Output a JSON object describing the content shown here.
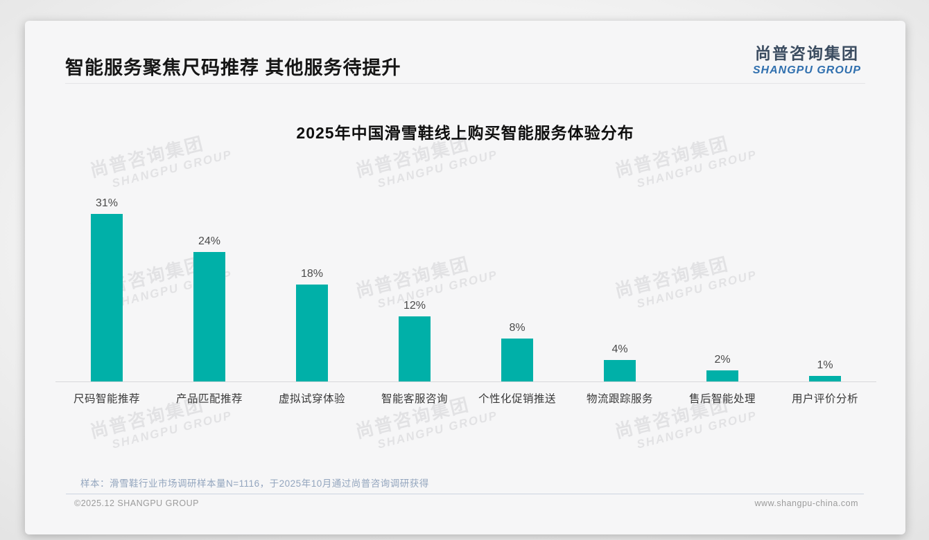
{
  "page": {
    "title": "智能服务聚焦尺码推荐 其他服务待提升",
    "logo": {
      "cn": "尚普咨询集团",
      "en": "SHANGPU GROUP"
    },
    "watermark": {
      "line1": "尚普咨询集团",
      "line2": "SHANGPU GROUP"
    },
    "note": "样本：滑雪鞋行业市场调研样本量N=1116，于2025年10月通过尚普咨询调研获得",
    "footer": {
      "left": "©2025.12 SHANGPU GROUP",
      "right": "www.shangpu-china.com"
    }
  },
  "chart_data": {
    "type": "bar",
    "title": "2025年中国滑雪鞋线上购买智能服务体验分布",
    "categories": [
      "尺码智能推荐",
      "产品匹配推荐",
      "虚拟试穿体验",
      "智能客服咨询",
      "个性化促销推送",
      "物流跟踪服务",
      "售后智能处理",
      "用户评价分析"
    ],
    "values": [
      31,
      24,
      18,
      12,
      8,
      4,
      2,
      1
    ],
    "unit": "%",
    "value_labels": [
      "31%",
      "24%",
      "18%",
      "12%",
      "8%",
      "4%",
      "2%",
      "1%"
    ],
    "bar_color": "#00b0a8",
    "xlabel": "",
    "ylabel": "",
    "ylim": [
      0,
      33
    ],
    "grid": false,
    "legend": "none",
    "axis_line_color": "#d8d8da"
  }
}
